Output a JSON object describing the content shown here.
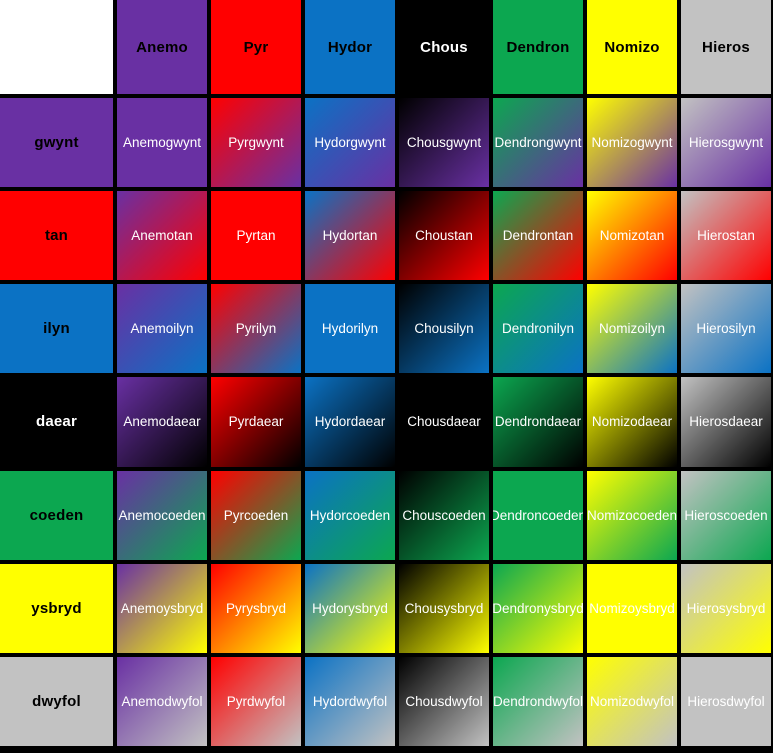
{
  "matrix": {
    "corner_label": "",
    "gridline_color": "#000000",
    "corner_background": "#ffffff",
    "cell_text_color": "#ffffff",
    "gradient_direction": "135deg",
    "columns": [
      {
        "name": "Anemo",
        "color": "#6930a3",
        "text_color": "#000000"
      },
      {
        "name": "Pyr",
        "color": "#ff0000",
        "text_color": "#000000"
      },
      {
        "name": "Hydor",
        "color": "#0b72c4",
        "text_color": "#000000"
      },
      {
        "name": "Chous",
        "color": "#000000",
        "text_color": "#ffffff"
      },
      {
        "name": "Dendron",
        "color": "#0ca750",
        "text_color": "#000000"
      },
      {
        "name": "Nomizo",
        "color": "#ffff00",
        "text_color": "#000000"
      },
      {
        "name": "Hieros",
        "color": "#c2c2c2",
        "text_color": "#000000"
      }
    ],
    "rows": [
      {
        "name": "gwynt",
        "color": "#6930a3",
        "text_color": "#000000"
      },
      {
        "name": "tan",
        "color": "#ff0000",
        "text_color": "#000000"
      },
      {
        "name": "ilyn",
        "color": "#0b72c4",
        "text_color": "#000000"
      },
      {
        "name": "daear",
        "color": "#000000",
        "text_color": "#ffffff"
      },
      {
        "name": "coeden",
        "color": "#0ca750",
        "text_color": "#000000"
      },
      {
        "name": "ysbryd",
        "color": "#ffff00",
        "text_color": "#000000"
      },
      {
        "name": "dwyfol",
        "color": "#c2c2c2",
        "text_color": "#000000"
      }
    ],
    "cells": [
      [
        "Anemogwynt",
        "Pyrgwynt",
        "Hydorgwynt",
        "Chousgwynt",
        "Dendrongwynt",
        "Nomizogwynt",
        "Hierosgwynt"
      ],
      [
        "Anemotan",
        "Pyrtan",
        "Hydortan",
        "Choustan",
        "Dendrontan",
        "Nomizotan",
        "Hierostan"
      ],
      [
        "Anemoilyn",
        "Pyrilyn",
        "Hydorilyn",
        "Chousilyn",
        "Dendronilyn",
        "Nomizoilyn",
        "Hierosilyn"
      ],
      [
        "Anemodaear",
        "Pyrdaear",
        "Hydordaear",
        "Chousdaear",
        "Dendrondaear",
        "Nomizodaear",
        "Hierosdaear"
      ],
      [
        "Anemocoeden",
        "Pyrcoeden",
        "Hydorcoeden",
        "Chouscoeden",
        "Dendroncoeden",
        "Nomizocoeden",
        "Hieroscoeden"
      ],
      [
        "Anemoysbryd",
        "Pyrysbryd",
        "Hydorysbryd",
        "Chousysbryd",
        "Dendronysbryd",
        "Nomizoysbryd",
        "Hierosysbryd"
      ],
      [
        "Anemodwyfol",
        "Pyrdwyfol",
        "Hydordwyfol",
        "Chousdwyfol",
        "Dendrondwyfol",
        "Nomizodwyfol",
        "Hierosdwyfol"
      ]
    ]
  },
  "chart_data": {
    "type": "heatmap",
    "title": "",
    "x_categories": [
      "Anemo",
      "Pyr",
      "Hydor",
      "Chous",
      "Dendron",
      "Nomizo",
      "Hieros"
    ],
    "y_categories": [
      "gwynt",
      "tan",
      "ilyn",
      "daear",
      "coeden",
      "ysbryd",
      "dwyfol"
    ],
    "x_colors": [
      "#6930a3",
      "#ff0000",
      "#0b72c4",
      "#000000",
      "#0ca750",
      "#ffff00",
      "#c2c2c2"
    ],
    "y_colors": [
      "#6930a3",
      "#ff0000",
      "#0b72c4",
      "#000000",
      "#0ca750",
      "#ffff00",
      "#c2c2c2"
    ],
    "cell_rule": "label = column name + row name; fill = linear gradient 135deg from column color (top-left) to row color (bottom-right)",
    "legend_position": "none",
    "grid": true,
    "values": [
      [
        "Anemogwynt",
        "Pyrgwynt",
        "Hydorgwynt",
        "Chousgwynt",
        "Dendrongwynt",
        "Nomizogwynt",
        "Hierosgwynt"
      ],
      [
        "Anemotan",
        "Pyrtan",
        "Hydortan",
        "Choustan",
        "Dendrontan",
        "Nomizotan",
        "Hierostan"
      ],
      [
        "Anemoilyn",
        "Pyrilyn",
        "Hydorilyn",
        "Chousilyn",
        "Dendronilyn",
        "Nomizoilyn",
        "Hierosilyn"
      ],
      [
        "Anemodaear",
        "Pyrdaear",
        "Hydordaear",
        "Chousdaear",
        "Dendrondaear",
        "Nomizodaear",
        "Hierosdaear"
      ],
      [
        "Anemocoeden",
        "Pyrcoeden",
        "Hydorcoeden",
        "Chouscoeden",
        "Dendroncoeden",
        "Nomizocoeden",
        "Hieroscoeden"
      ],
      [
        "Anemoysbryd",
        "Pyrysbryd",
        "Hydorysbryd",
        "Chousysbryd",
        "Dendronysbryd",
        "Nomizoysbryd",
        "Hierosysbryd"
      ],
      [
        "Anemodwyfol",
        "Pyrdwyfol",
        "Hydordwyfol",
        "Chousdwyfol",
        "Dendrondwyfol",
        "Nomizodwyfol",
        "Hierosdwyfol"
      ]
    ]
  }
}
